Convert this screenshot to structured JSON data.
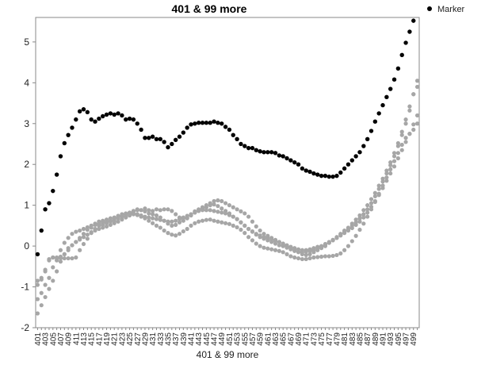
{
  "chart_data": {
    "type": "scatter",
    "title": "401 & 99 more",
    "xlabel": "401 & 99 more",
    "ylabel": "",
    "x_start": 401,
    "x_end": 500,
    "x_tick_labels": [
      "401",
      "403",
      "405",
      "407",
      "409",
      "411",
      "413",
      "415",
      "417",
      "419",
      "421",
      "423",
      "425",
      "427",
      "429",
      "431",
      "433",
      "435",
      "437",
      "439",
      "441",
      "443",
      "445",
      "447",
      "449",
      "451",
      "453",
      "455",
      "457",
      "459",
      "461",
      "463",
      "465",
      "467",
      "469",
      "471",
      "473",
      "475",
      "477",
      "479",
      "481",
      "483",
      "485",
      "487",
      "489",
      "491",
      "493",
      "495",
      "497",
      "499"
    ],
    "ylim": [
      -2,
      5.6
    ],
    "y_ticks": [
      -2,
      -1,
      0,
      1,
      2,
      3,
      4,
      5
    ],
    "legend": {
      "position": "top-right",
      "entries": [
        "Marker"
      ]
    },
    "colors": {
      "highlight": "#000000",
      "others": "#a6a6a6",
      "axis": "#888888"
    },
    "highlight_series": {
      "name": "Marker",
      "values": [
        -0.2,
        0.38,
        0.9,
        1.05,
        1.35,
        1.75,
        2.2,
        2.52,
        2.72,
        2.9,
        3.1,
        3.3,
        3.35,
        3.28,
        3.1,
        3.05,
        3.12,
        3.18,
        3.22,
        3.25,
        3.22,
        3.25,
        3.2,
        3.1,
        3.12,
        3.1,
        3.0,
        2.85,
        2.65,
        2.65,
        2.68,
        2.62,
        2.62,
        2.55,
        2.42,
        2.5,
        2.6,
        2.68,
        2.78,
        2.9,
        2.98,
        3.0,
        3.02,
        3.02,
        3.02,
        3.02,
        3.05,
        3.02,
        3.0,
        2.92,
        2.85,
        2.72,
        2.62,
        2.5,
        2.45,
        2.4,
        2.4,
        2.35,
        2.32,
        2.3,
        2.3,
        2.3,
        2.28,
        2.22,
        2.2,
        2.15,
        2.1,
        2.05,
        2.0,
        1.9,
        1.85,
        1.82,
        1.78,
        1.75,
        1.72,
        1.72,
        1.7,
        1.7,
        1.72,
        1.8,
        1.9,
        2.0,
        2.1,
        2.2,
        2.3,
        2.45,
        2.62,
        2.82,
        3.05,
        3.25,
        3.45,
        3.65,
        3.85,
        4.08,
        4.35,
        4.68,
        4.98,
        5.25,
        5.52
      ]
    },
    "other_series": [
      {
        "values": [
          -0.85,
          -0.82,
          -0.62,
          -0.35,
          -0.28,
          -0.3,
          -0.3,
          -0.3,
          -0.3,
          -0.3,
          -0.28,
          -0.1,
          0.05,
          0.18,
          0.32,
          0.42,
          0.5,
          0.52,
          0.56,
          0.6,
          0.62,
          0.68,
          0.72,
          0.72,
          0.8,
          0.86,
          0.9,
          0.88,
          0.92,
          0.88,
          0.86,
          0.9,
          0.88,
          0.9,
          0.9,
          0.86,
          0.78,
          0.7,
          0.68,
          0.7,
          0.76,
          0.85,
          0.9,
          0.92,
          0.95,
          1.0,
          1.02,
          0.98,
          0.92,
          0.86,
          0.8,
          0.72,
          0.66,
          0.58,
          0.5,
          0.42,
          0.36,
          0.3,
          0.26,
          0.22,
          0.2,
          0.16,
          0.12,
          0.1,
          0.06,
          0.02,
          -0.02,
          -0.05,
          -0.08,
          -0.1,
          -0.1,
          -0.08,
          -0.05,
          -0.02,
          0.0,
          0.05,
          0.1,
          0.15,
          0.2,
          0.28,
          0.35,
          0.42,
          0.5,
          0.58,
          0.68,
          0.78,
          0.9,
          1.05,
          1.22,
          1.4,
          1.58,
          1.78,
          1.98,
          2.2,
          2.45,
          2.72,
          3.0,
          3.32,
          3.72,
          4.05
        ]
      },
      {
        "values": [
          -1.65,
          -1.45,
          -1.25,
          -1.05,
          -0.85,
          -0.62,
          -0.38,
          -0.2,
          -0.05,
          0.02,
          0.1,
          0.2,
          0.3,
          0.4,
          0.45,
          0.52,
          0.55,
          0.58,
          0.6,
          0.62,
          0.65,
          0.7,
          0.75,
          0.78,
          0.82,
          0.85,
          0.88,
          0.88,
          0.85,
          0.8,
          0.78,
          0.75,
          0.7,
          0.62,
          0.55,
          0.5,
          0.52,
          0.58,
          0.62,
          0.68,
          0.75,
          0.82,
          0.88,
          0.95,
          1.0,
          1.05,
          1.1,
          1.12,
          1.1,
          1.05,
          1.0,
          0.95,
          0.9,
          0.85,
          0.8,
          0.72,
          0.6,
          0.48,
          0.38,
          0.3,
          0.25,
          0.2,
          0.15,
          0.1,
          0.05,
          0.0,
          -0.05,
          -0.1,
          -0.15,
          -0.2,
          -0.22,
          -0.2,
          -0.15,
          -0.1,
          -0.05,
          0.0,
          0.08,
          0.15,
          0.22,
          0.3,
          0.38,
          0.45,
          0.55,
          0.65,
          0.75,
          0.88,
          1.0,
          1.15,
          1.3,
          1.48,
          1.65,
          1.85,
          2.05,
          2.28,
          2.52,
          2.8,
          3.1,
          3.42,
          3.72,
          3.9
        ]
      },
      {
        "values": [
          -0.95,
          -0.78,
          -0.58,
          -0.32,
          -0.28,
          -0.28,
          -0.26,
          -0.2,
          -0.1,
          0.02,
          0.1,
          0.16,
          0.22,
          0.28,
          0.34,
          0.38,
          0.42,
          0.45,
          0.48,
          0.52,
          0.56,
          0.6,
          0.65,
          0.7,
          0.75,
          0.78,
          0.76,
          0.72,
          0.68,
          0.62,
          0.56,
          0.5,
          0.45,
          0.38,
          0.32,
          0.28,
          0.26,
          0.3,
          0.36,
          0.42,
          0.5,
          0.56,
          0.6,
          0.62,
          0.64,
          0.65,
          0.62,
          0.6,
          0.58,
          0.56,
          0.54,
          0.5,
          0.46,
          0.4,
          0.32,
          0.22,
          0.14,
          0.06,
          0.0,
          -0.04,
          -0.06,
          -0.08,
          -0.1,
          -0.12,
          -0.15,
          -0.2,
          -0.25,
          -0.28,
          -0.3,
          -0.32,
          -0.32,
          -0.3,
          -0.28,
          -0.27,
          -0.26,
          -0.25,
          -0.25,
          -0.24,
          -0.22,
          -0.18,
          -0.1,
          0.0,
          0.12,
          0.25,
          0.4,
          0.55,
          0.72,
          0.9,
          1.08,
          1.28,
          1.48,
          1.68,
          1.88,
          2.08,
          2.28,
          2.48,
          2.65,
          2.75,
          2.85,
          3.0
        ]
      },
      {
        "values": [
          -1.3,
          -1.15,
          -0.95,
          -0.78,
          -0.52,
          -0.35,
          -0.1,
          0.08,
          0.2,
          0.3,
          0.35,
          0.38,
          0.42,
          0.46,
          0.5,
          0.55,
          0.6,
          0.62,
          0.65,
          0.68,
          0.7,
          0.74,
          0.78,
          0.8,
          0.82,
          0.8,
          0.78,
          0.75,
          0.72,
          0.7,
          0.68,
          0.66,
          0.64,
          0.62,
          0.6,
          0.6,
          0.62,
          0.66,
          0.7,
          0.74,
          0.78,
          0.82,
          0.86,
          0.88,
          0.88,
          0.88,
          0.86,
          0.84,
          0.82,
          0.8,
          0.76,
          0.72,
          0.66,
          0.58,
          0.5,
          0.42,
          0.35,
          0.28,
          0.22,
          0.18,
          0.14,
          0.1,
          0.06,
          0.02,
          0.0,
          -0.04,
          -0.08,
          -0.12,
          -0.14,
          -0.15,
          -0.14,
          -0.12,
          -0.1,
          -0.06,
          -0.02,
          0.03,
          0.08,
          0.14,
          0.2,
          0.26,
          0.32,
          0.38,
          0.44,
          0.52,
          0.6,
          0.7,
          0.82,
          0.96,
          1.1,
          1.25,
          1.42,
          1.6,
          1.78,
          1.95,
          2.15,
          2.35,
          2.55,
          2.75,
          2.98,
          3.2
        ]
      }
    ]
  }
}
